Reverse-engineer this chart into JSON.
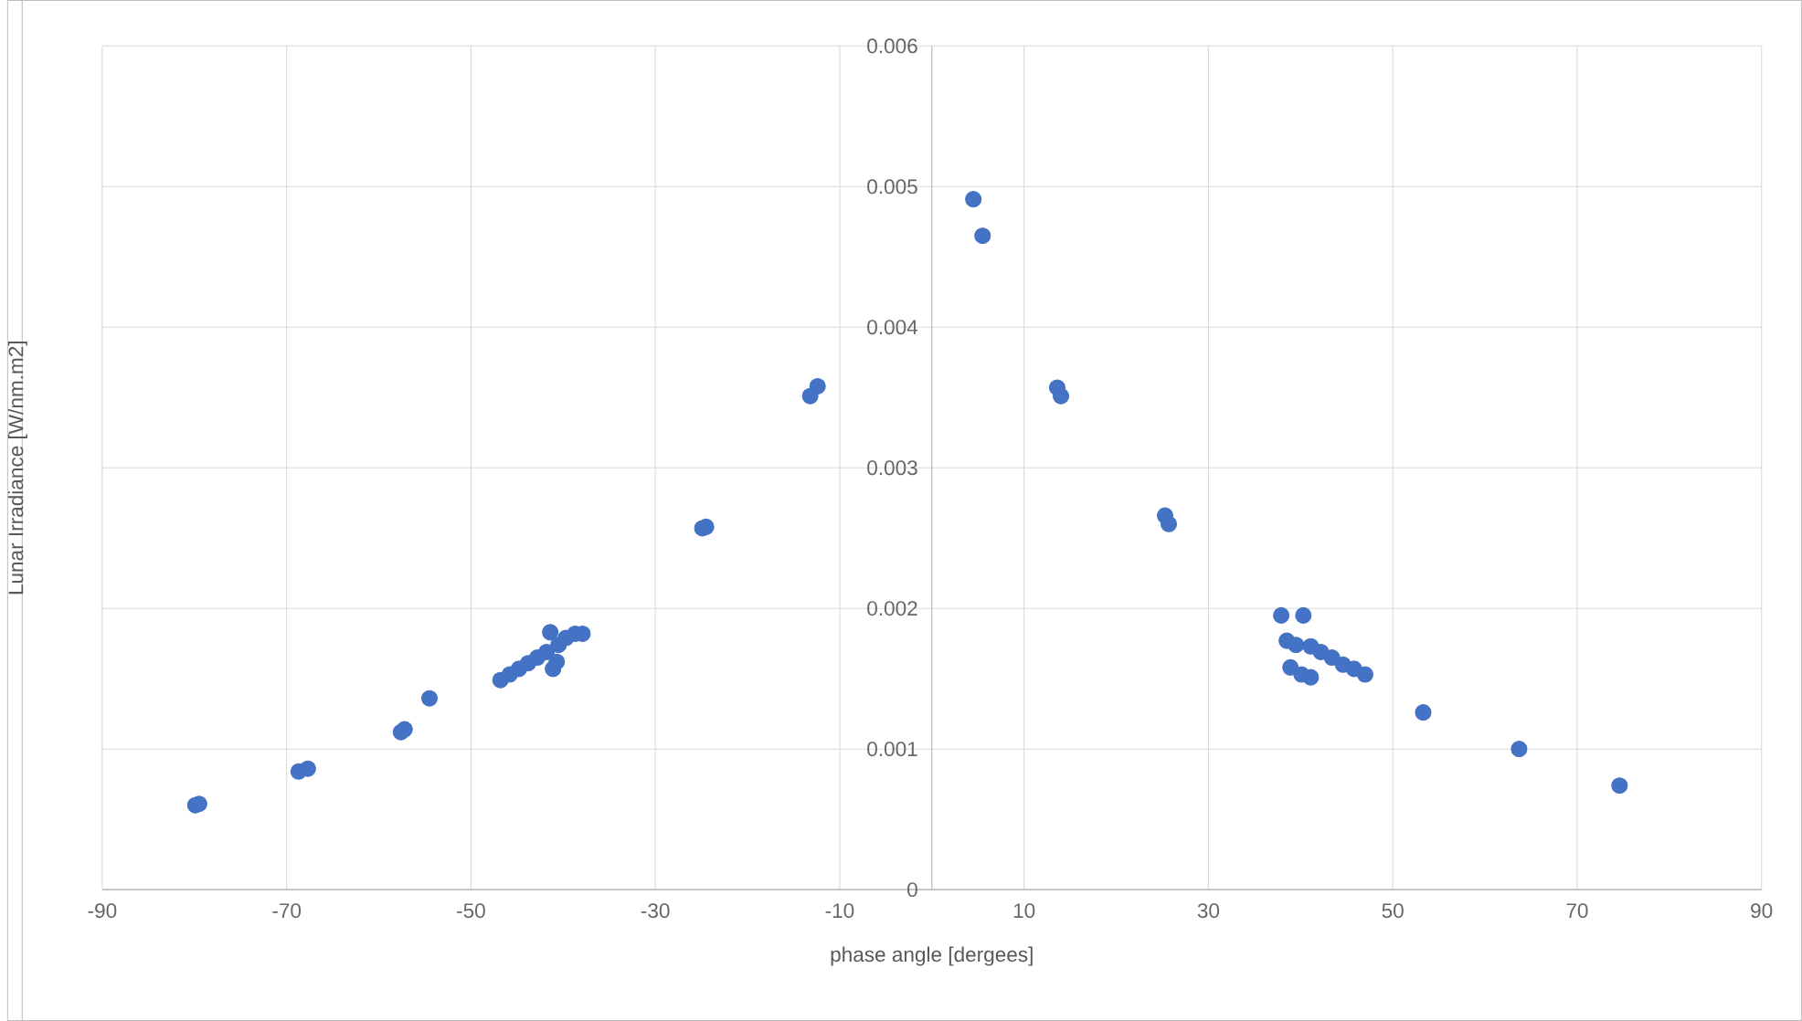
{
  "chart_data": {
    "type": "scatter",
    "xlabel": "phase angle [dergees]",
    "ylabel": "Lunar Irradiance [W/nm.m2]",
    "marker": "circle",
    "grid": true,
    "xlim": [
      -90,
      90
    ],
    "xticks": [
      -90,
      -70,
      -50,
      -30,
      -10,
      10,
      30,
      50,
      70,
      90
    ],
    "ylim": [
      0,
      0.006
    ],
    "yticks": [
      0,
      0.001,
      0.002,
      0.003,
      0.004,
      0.005,
      0.006
    ],
    "series": [
      {
        "color": "#4472c4",
        "x": [
          -79.9,
          -79.5,
          -68.7,
          -67.7,
          -57.6,
          -57.2,
          -54.5,
          -46.8,
          -45.8,
          -44.8,
          -43.8,
          -42.8,
          -41.8,
          -41.4,
          -41.1,
          -40.7,
          -40.5,
          -39.7,
          -38.7,
          -37.9,
          -24.9,
          -24.5,
          -13.2,
          -12.4,
          4.5,
          5.5,
          13.6,
          14.0,
          25.3,
          25.7,
          37.9,
          40.3,
          38.5,
          39.5,
          38.9,
          40.1,
          41.1,
          41.1,
          42.2,
          43.4,
          44.6,
          45.8,
          47.0,
          53.3,
          63.7,
          74.6
        ],
        "values": [
          0.0006,
          0.00061,
          0.00084,
          0.00086,
          0.00112,
          0.00114,
          0.00136,
          0.00149,
          0.00153,
          0.00157,
          0.00161,
          0.00165,
          0.00169,
          0.00183,
          0.00157,
          0.00162,
          0.00174,
          0.00179,
          0.00182,
          0.00182,
          0.00257,
          0.00258,
          0.00351,
          0.00358,
          0.00491,
          0.00465,
          0.00357,
          0.00351,
          0.00266,
          0.0026,
          0.00195,
          0.00195,
          0.00177,
          0.00174,
          0.00158,
          0.00153,
          0.00151,
          0.00173,
          0.00169,
          0.00165,
          0.0016,
          0.00157,
          0.00153,
          0.00126,
          0.001,
          0.00074
        ]
      }
    ]
  }
}
